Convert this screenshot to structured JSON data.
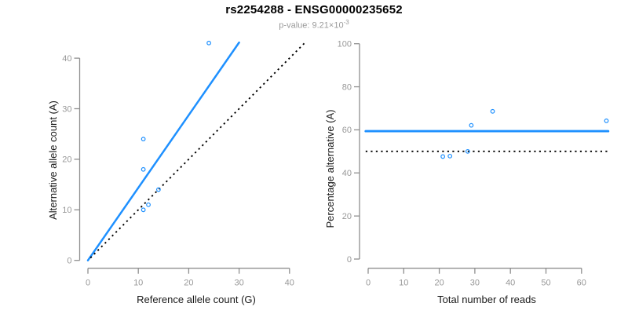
{
  "header": {
    "title": "rs2254288 - ENSG00000235652",
    "subtitle_base": "p-value: 9.21×10",
    "subtitle_exponent": "-3"
  },
  "colors": {
    "accent_blue": "#1E90FF",
    "dotted_black": "#000000",
    "axis_gray": "#8f8f8f",
    "tick_label_gray": "#989898",
    "axis_label_dark": "#1a1a1a"
  },
  "chart_data": [
    {
      "type": "scatter",
      "name": "allele-counts",
      "title": "",
      "xlabel": "Reference allele count (G)",
      "ylabel": "Alternative allele count (A)",
      "xlim": [
        0,
        40
      ],
      "ylim": [
        0,
        40
      ],
      "xticks": [
        0,
        10,
        20,
        30,
        40
      ],
      "yticks": [
        0,
        10,
        20,
        30,
        40
      ],
      "grid": false,
      "legend": "none",
      "points": [
        [
          11,
          10
        ],
        [
          12,
          11
        ],
        [
          14,
          14
        ],
        [
          11,
          18
        ],
        [
          11,
          24
        ],
        [
          24,
          43
        ]
      ],
      "lines": [
        {
          "name": "fitted-ratio-line",
          "x1": 0,
          "y1": 0,
          "x2": 30,
          "y2": 43.1,
          "style": "solid",
          "color": "#1E90FF"
        },
        {
          "name": "identity-line",
          "x1": 0.5,
          "y1": 0.5,
          "x2": 43,
          "y2": 43,
          "style": "dotted",
          "color": "#000000"
        }
      ]
    },
    {
      "type": "scatter",
      "name": "percentage-vs-reads",
      "title": "",
      "xlabel": "Total number of reads",
      "ylabel": "Percentage alternative (A)",
      "xlim": [
        0,
        60
      ],
      "ylim": [
        0,
        100
      ],
      "xticks": [
        0,
        10,
        20,
        30,
        40,
        50,
        60
      ],
      "yticks": [
        0,
        20,
        40,
        60,
        80,
        100
      ],
      "grid": false,
      "legend": "none",
      "points": [
        [
          21,
          47.6
        ],
        [
          23,
          47.8
        ],
        [
          28,
          50
        ],
        [
          29,
          62.1
        ],
        [
          35,
          68.6
        ],
        [
          67,
          64.2
        ]
      ],
      "lines": [
        {
          "name": "fitted-percentage-line",
          "x1": -0.7,
          "y1": 59.4,
          "x2": 67.5,
          "y2": 59.4,
          "style": "solid",
          "color": "#1E90FF"
        },
        {
          "name": "expected-50-percent-line",
          "x1": -0.7,
          "y1": 50,
          "x2": 67.5,
          "y2": 50,
          "style": "dotted",
          "color": "#000000"
        }
      ]
    }
  ]
}
